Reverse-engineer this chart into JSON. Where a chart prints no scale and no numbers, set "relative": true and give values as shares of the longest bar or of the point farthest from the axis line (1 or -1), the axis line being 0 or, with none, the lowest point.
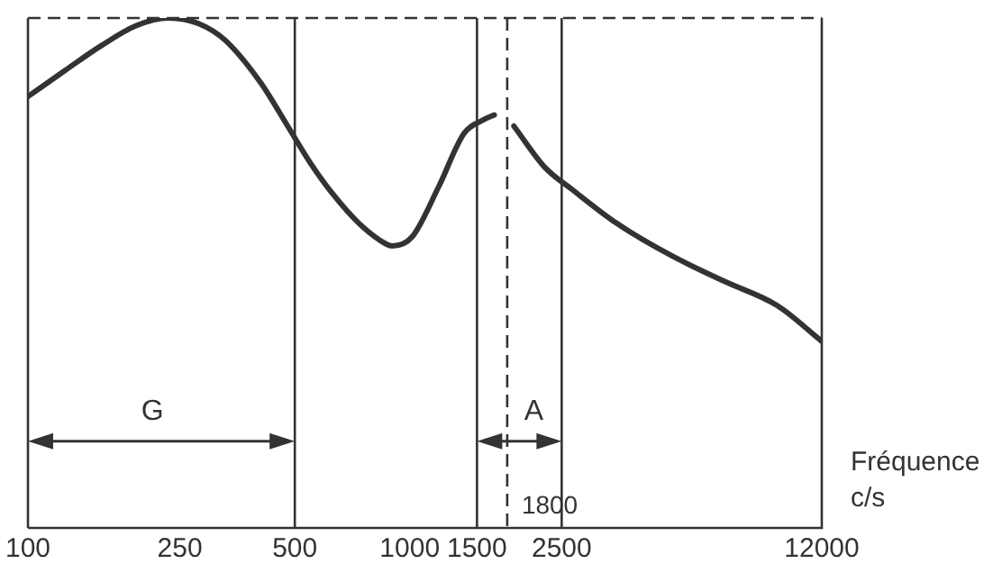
{
  "chart_data": {
    "type": "line",
    "relative": true,
    "log": "x",
    "xlabel": "Fréquence c/s",
    "xlim": [
      100,
      12000
    ],
    "xticks": [
      100,
      250,
      500,
      1000,
      1500,
      2500,
      12000
    ],
    "tick_labels": "x",
    "grid": false,
    "legend": false,
    "marker": "none",
    "line_style": "solid",
    "x": [
      100,
      125,
      155,
      192,
      233,
      280,
      329,
      408,
      479,
      551,
      627,
      737,
      866,
      900,
      1015,
      1192,
      1385,
      1557,
      1665,
      1720,
      1874,
      2260,
      2670,
      3490,
      4820,
      6650,
      9180,
      12000
    ],
    "series": [
      {
        "color": "#333333",
        "values": [
          0.846,
          0.897,
          0.945,
          0.985,
          1.0,
          0.989,
          0.956,
          0.872,
          0.788,
          0.714,
          0.656,
          0.597,
          0.557,
          0.553,
          0.571,
          0.67,
          0.773,
          0.8,
          0.81,
          null,
          0.788,
          0.707,
          0.663,
          0.597,
          0.535,
          0.484,
          0.436,
          0.366
        ]
      }
    ],
    "annotations": [
      "G",
      "A"
    ],
    "ref_lines": [
      {
        "axis": "x",
        "value": 500,
        "color": "#333333",
        "line_style": "solid"
      },
      {
        "axis": "x",
        "value": 1500,
        "color": "#333333",
        "line_style": "solid"
      },
      {
        "axis": "x",
        "value": 1800,
        "label": "1800",
        "color": "#333333",
        "line_style": "dashed"
      },
      {
        "axis": "x",
        "value": 2500,
        "color": "#333333",
        "line_style": "solid"
      }
    ]
  }
}
